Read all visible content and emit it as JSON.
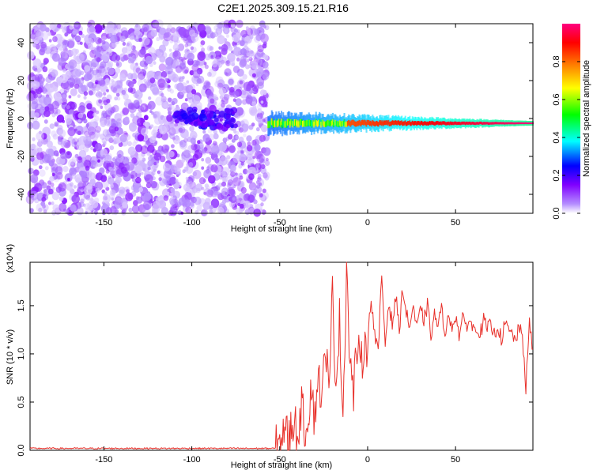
{
  "title": "C2E1.2025.309.15.21.R16",
  "chart_data": [
    {
      "type": "heatmap",
      "xlabel": "Height of straight line (km)",
      "ylabel": "Frequency (Hz)",
      "xlim": [
        -192,
        94
      ],
      "ylim": [
        -50,
        50
      ],
      "xticks": [
        -150,
        -100,
        -50,
        0,
        50
      ],
      "xtick_labels": [
        "-150",
        "-100",
        "-50",
        "0",
        "50"
      ],
      "yticks": [
        -40,
        -20,
        0,
        20,
        40
      ],
      "ytick_labels": [
        "-40",
        "-20",
        "0",
        "20",
        "40"
      ],
      "colorbar": {
        "label": "Normalized spectral amplitude",
        "range": [
          0,
          1
        ],
        "ticks": [
          0.0,
          0.2,
          0.4,
          0.6,
          0.8
        ],
        "tick_labels": [
          "0.0",
          "0.2",
          "0.4",
          "0.6",
          "0.8"
        ],
        "colors": [
          "#ffffff",
          "#8000ff",
          "#0000ff",
          "#00ffff",
          "#00ff00",
          "#ffff00",
          "#ff8000",
          "#ff0000",
          "#ff0080"
        ]
      },
      "regions": [
        {
          "x_range": [
            -192,
            -57
          ],
          "f_range": [
            -50,
            50
          ],
          "amplitude_range": [
            0.0,
            0.1
          ],
          "description": "scattered noise"
        },
        {
          "x_range": [
            -110,
            -75
          ],
          "f_range": [
            -5,
            5
          ],
          "amplitude_range": [
            0.1,
            0.2
          ]
        },
        {
          "x_range": [
            -57,
            94
          ],
          "f_range": [
            -4,
            4
          ],
          "amplitude_range": [
            0.2,
            1.0
          ],
          "centre_frequency": -2.5
        }
      ]
    },
    {
      "type": "line",
      "xlabel": "Height of straight line (km)",
      "ylabel": "SNR (10 * v/v)",
      "scale_label": "(x10^4)",
      "xlim": [
        -192,
        94
      ],
      "ylim": [
        0,
        1.95
      ],
      "xticks": [
        -150,
        -100,
        -50,
        0,
        50
      ],
      "xtick_labels": [
        "-150",
        "-100",
        "-50",
        "0",
        "50"
      ],
      "yticks": [
        0.0,
        0.5,
        1.0,
        1.5
      ],
      "ytick_labels": [
        "0.0",
        "0.5",
        "1.0",
        "1.5"
      ],
      "color": "#e8302a",
      "x": [
        -192,
        -180,
        -160,
        -140,
        -120,
        -100,
        -80,
        -60,
        -52,
        -50,
        -48,
        -45,
        -42,
        -40,
        -38,
        -35,
        -32,
        -30,
        -28,
        -26,
        -24,
        -22,
        -20,
        -18,
        -16,
        -14,
        -12,
        -10,
        -8,
        -6,
        -4,
        -2,
        0,
        2,
        4,
        6,
        8,
        10,
        12,
        14,
        16,
        18,
        20,
        22,
        24,
        26,
        28,
        30,
        32,
        34,
        36,
        38,
        40,
        42,
        44,
        46,
        48,
        50,
        52,
        54,
        56,
        58,
        60,
        62,
        64,
        66,
        68,
        70,
        72,
        74,
        76,
        78,
        80,
        82,
        84,
        86,
        88,
        90,
        92,
        94
      ],
      "y": [
        0.02,
        0.02,
        0.02,
        0.02,
        0.02,
        0.02,
        0.02,
        0.02,
        0.02,
        0.05,
        0.25,
        0.1,
        0.35,
        0.12,
        0.45,
        0.2,
        0.7,
        0.3,
        0.9,
        0.4,
        1.2,
        0.5,
        1.65,
        0.7,
        1.35,
        0.35,
        1.95,
        0.9,
        0.6,
        1.1,
        0.8,
        1.15,
        1.1,
        1.6,
        1.2,
        1.0,
        1.82,
        1.1,
        1.55,
        1.3,
        1.6,
        1.25,
        1.7,
        1.4,
        1.3,
        1.5,
        1.25,
        1.45,
        1.35,
        1.5,
        1.2,
        1.4,
        1.3,
        1.45,
        1.25,
        1.35,
        1.3,
        1.4,
        1.2,
        1.35,
        1.3,
        1.35,
        1.25,
        1.3,
        1.2,
        1.35,
        1.25,
        1.3,
        1.2,
        1.3,
        1.15,
        1.3,
        1.25,
        1.2,
        1.15,
        1.25,
        1.2,
        0.65,
        1.3,
        1.05
      ]
    }
  ]
}
